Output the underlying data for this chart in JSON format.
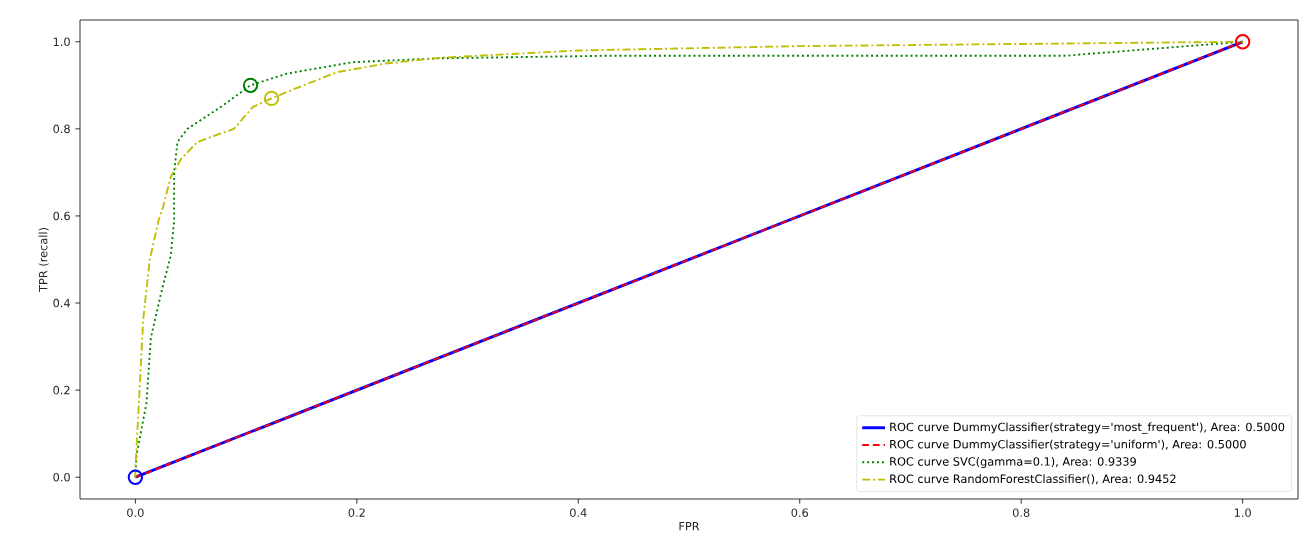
{
  "chart_data": {
    "type": "line",
    "xlabel": "FPR",
    "ylabel": "TPR (recall)",
    "xlim": [
      -0.05,
      1.05
    ],
    "ylim": [
      -0.05,
      1.05
    ],
    "xticks": [
      {
        "value": 0,
        "label": "0.0"
      },
      {
        "value": 0.2,
        "label": "0.2"
      },
      {
        "value": 0.4,
        "label": "0.4"
      },
      {
        "value": 0.6,
        "label": "0.6"
      },
      {
        "value": 0.8,
        "label": "0.8"
      },
      {
        "value": 1,
        "label": "1.0"
      }
    ],
    "yticks": [
      {
        "value": 0,
        "label": "0.0"
      },
      {
        "value": 0.2,
        "label": "0.2"
      },
      {
        "value": 0.4,
        "label": "0.4"
      },
      {
        "value": 0.6,
        "label": "0.6"
      },
      {
        "value": 0.8,
        "label": "0.8"
      },
      {
        "value": 1,
        "label": "1.0"
      }
    ],
    "grid": false,
    "legend": "bottom right",
    "series": [
      {
        "name": "ROC curve DummyClassifier(strategy='most_frequent'), Area: 0.5000",
        "color": "#0000ff",
        "line_style": "solid",
        "marker": "none",
        "x": [
          0,
          1
        ],
        "values": [
          0,
          1
        ]
      },
      {
        "name": "ROC curve DummyClassifier(strategy='uniform'), Area: 0.5000",
        "color": "#ff0000",
        "line_style": "dashed",
        "marker": "none",
        "x": [
          0,
          1
        ],
        "values": [
          0,
          1
        ]
      },
      {
        "name": "ROC curve SVC(gamma=0.1), Area: 0.9339",
        "color": "#008000",
        "line_style": "dotted",
        "marker": "none",
        "x": [
          0,
          0.001,
          0.01,
          0.014,
          0.023,
          0.032,
          0.035,
          0.035,
          0.038,
          0.047,
          0.077,
          0.104,
          0.137,
          0.196,
          0.274,
          0.43,
          0.84,
          0.9,
          1
        ],
        "values": [
          0,
          0.05,
          0.17,
          0.32,
          0.42,
          0.51,
          0.59,
          0.7,
          0.77,
          0.8,
          0.85,
          0.9,
          0.927,
          0.953,
          0.962,
          0.968,
          0.968,
          0.98,
          1
        ]
      },
      {
        "name": "ROC curve RandomForestClassifier(), Area: 0.9452",
        "color": "#bfbf00",
        "line_style": "dashdot",
        "marker": "none",
        "x": [
          0,
          0,
          0.004,
          0.007,
          0.013,
          0.021,
          0.025,
          0.032,
          0.041,
          0.056,
          0.089,
          0.106,
          0.123,
          0.142,
          0.182,
          0.226,
          0.274,
          0.4,
          0.6,
          0.8,
          1
        ],
        "values": [
          0,
          0.02,
          0.21,
          0.36,
          0.5,
          0.59,
          0.62,
          0.69,
          0.73,
          0.77,
          0.8,
          0.85,
          0.87,
          0.89,
          0.93,
          0.95,
          0.963,
          0.98,
          0.99,
          0.995,
          1
        ]
      },
      {
        "type": "scatter",
        "color": "#0000ff",
        "marker": "circle",
        "x": [
          0
        ],
        "values": [
          0
        ]
      },
      {
        "type": "scatter",
        "color": "#ff0000",
        "marker": "circle",
        "x": [
          1
        ],
        "values": [
          1
        ]
      },
      {
        "type": "scatter",
        "color": "#008000",
        "marker": "circle",
        "x": [
          0.104
        ],
        "values": [
          0.9
        ]
      },
      {
        "type": "scatter",
        "color": "#bfbf00",
        "marker": "circle",
        "x": [
          0.123
        ],
        "values": [
          0.87
        ]
      }
    ]
  }
}
